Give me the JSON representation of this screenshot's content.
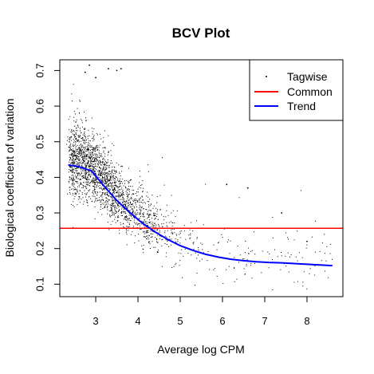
{
  "chart_data": {
    "type": "scatter",
    "title": "BCV Plot",
    "xlabel": "Average log CPM",
    "ylabel": "Biological coefficient of variation",
    "xlim": [
      2.15,
      8.85
    ],
    "ylim": [
      0.065,
      0.73
    ],
    "xticks": [
      "3",
      "4",
      "5",
      "6",
      "7",
      "8"
    ],
    "yticks": [
      "0.1",
      "0.2",
      "0.3",
      "0.4",
      "0.5",
      "0.6",
      "0.7"
    ],
    "grid": false,
    "legend_position": "top-right",
    "colors": {
      "tagwise": "#000000",
      "common": "#ff0000",
      "trend": "#0000ff"
    },
    "series": [
      {
        "name": "Tagwise",
        "kind": "points",
        "x_range": [
          2.3,
          8.6
        ],
        "highlighted_points": [
          {
            "x": 2.85,
            "y": 0.715
          },
          {
            "x": 2.75,
            "y": 0.695
          },
          {
            "x": 3.3,
            "y": 0.705
          },
          {
            "x": 3.6,
            "y": 0.705
          },
          {
            "x": 3.0,
            "y": 0.68
          },
          {
            "x": 3.5,
            "y": 0.7
          },
          {
            "x": 6.1,
            "y": 0.38
          },
          {
            "x": 6.6,
            "y": 0.37
          },
          {
            "x": 7.4,
            "y": 0.3
          },
          {
            "x": 8.0,
            "y": 0.22
          }
        ]
      },
      {
        "name": "Common",
        "kind": "hline",
        "y": 0.257
      },
      {
        "name": "Trend",
        "kind": "line",
        "x": [
          2.35,
          2.6,
          2.9,
          3.2,
          3.5,
          3.8,
          4.1,
          4.4,
          4.7,
          5.0,
          5.3,
          5.6,
          5.9,
          6.2,
          6.5,
          6.8,
          7.1,
          7.4,
          7.7,
          8.0,
          8.3,
          8.6
        ],
        "y": [
          0.435,
          0.43,
          0.418,
          0.375,
          0.335,
          0.302,
          0.272,
          0.247,
          0.226,
          0.208,
          0.195,
          0.184,
          0.176,
          0.17,
          0.166,
          0.163,
          0.161,
          0.16,
          0.158,
          0.156,
          0.154,
          0.152
        ]
      }
    ]
  }
}
